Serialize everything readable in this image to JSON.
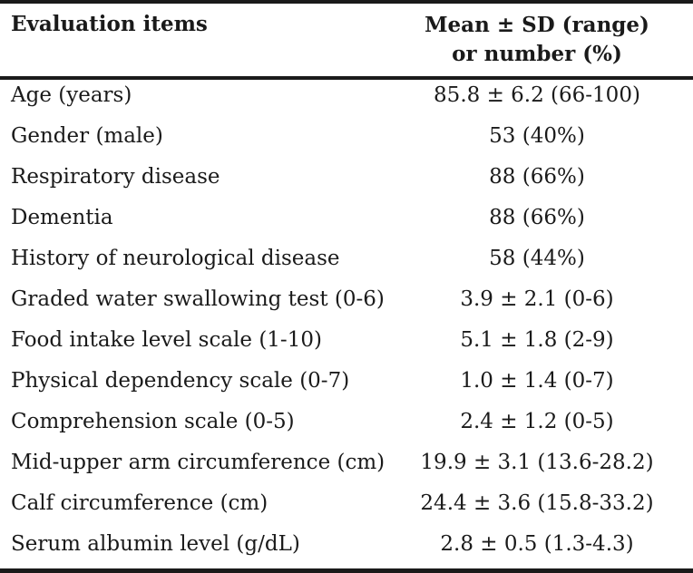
{
  "table": {
    "header": {
      "label": "Evaluation items",
      "value_line1": "Mean ± SD (range)",
      "value_line2": "or number (%)"
    },
    "rows": [
      {
        "label": "Age (years)",
        "value": "85.8 ± 6.2 (66-100)"
      },
      {
        "label": "Gender (male)",
        "value": "53 (40%)"
      },
      {
        "label": "Respiratory disease",
        "value": "88 (66%)"
      },
      {
        "label": "Dementia",
        "value": "88 (66%)"
      },
      {
        "label": "History of neurological disease",
        "value": "58 (44%)"
      },
      {
        "label": "Graded water swallowing test (0-6)",
        "value": "3.9 ± 2.1 (0-6)"
      },
      {
        "label": "Food intake level scale (1-10)",
        "value": "5.1 ± 1.8 (2-9)"
      },
      {
        "label": "Physical dependency scale (0-7)",
        "value": "1.0 ± 1.4 (0-7)"
      },
      {
        "label": "Comprehension scale (0-5)",
        "value": "2.4 ± 1.2 (0-5)"
      },
      {
        "label": "Mid-upper arm circumference (cm)",
        "value": "19.9 ± 3.1 (13.6-28.2)"
      },
      {
        "label": "Calf circumference (cm)",
        "value": "24.4 ± 3.6 (15.8-33.2)"
      },
      {
        "label": "Serum albumin level (g/dL)",
        "value": "2.8 ± 0.5 (1.3-4.3)"
      }
    ]
  }
}
